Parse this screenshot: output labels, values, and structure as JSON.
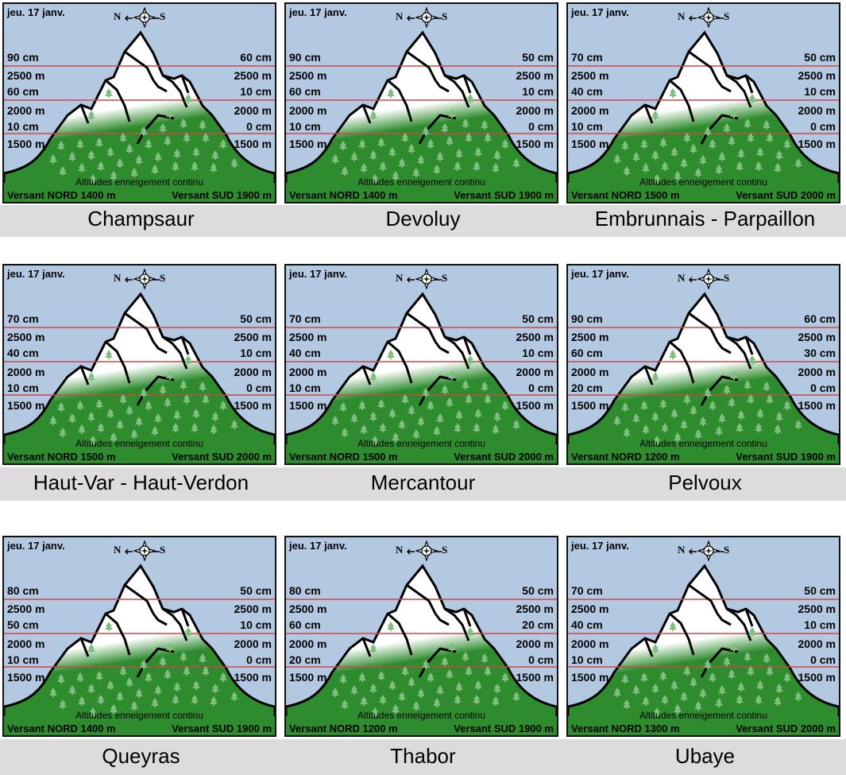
{
  "common": {
    "date": "jeu. 17 janv.",
    "north": "N",
    "south": "S",
    "alt_high": "2500 m",
    "alt_mid": "2000 m",
    "alt_low": "1500 m",
    "continu_label": "Altitudes enneigement continu"
  },
  "panels": [
    {
      "name": "Champsaur",
      "n_top": "90 cm",
      "n_mid": "60 cm",
      "n_low": "10 cm",
      "s_top": "60 cm",
      "s_mid": "10 cm",
      "s_low": "0 cm",
      "versant_nord": "Versant NORD 1400 m",
      "versant_sud": "Versant SUD 1900 m"
    },
    {
      "name": "Devoluy",
      "n_top": "90 cm",
      "n_mid": "60 cm",
      "n_low": "10 cm",
      "s_top": "50 cm",
      "s_mid": "10 cm",
      "s_low": "0 cm",
      "versant_nord": "Versant NORD 1400 m",
      "versant_sud": "Versant SUD 1900 m"
    },
    {
      "name": "Embrunnais - Parpaillon",
      "n_top": "70 cm",
      "n_mid": "40 cm",
      "n_low": "10 cm",
      "s_top": "50 cm",
      "s_mid": "10 cm",
      "s_low": "0 cm",
      "versant_nord": "Versant NORD 1500 m",
      "versant_sud": "Versant SUD 2000 m"
    },
    {
      "name": "Haut-Var - Haut-Verdon",
      "n_top": "70 cm",
      "n_mid": "40 cm",
      "n_low": "10 cm",
      "s_top": "50 cm",
      "s_mid": "10 cm",
      "s_low": "0 cm",
      "versant_nord": "Versant NORD 1500 m",
      "versant_sud": "Versant SUD 2000 m"
    },
    {
      "name": "Mercantour",
      "n_top": "70 cm",
      "n_mid": "40 cm",
      "n_low": "10 cm",
      "s_top": "50 cm",
      "s_mid": "10 cm",
      "s_low": "0 cm",
      "versant_nord": "Versant NORD 1500 m",
      "versant_sud": "Versant SUD 2000 m"
    },
    {
      "name": "Pelvoux",
      "n_top": "90 cm",
      "n_mid": "60 cm",
      "n_low": "20 cm",
      "s_top": "60 cm",
      "s_mid": "30 cm",
      "s_low": "0 cm",
      "versant_nord": "Versant NORD 1200 m",
      "versant_sud": "Versant SUD 1900 m"
    },
    {
      "name": "Queyras",
      "n_top": "80 cm",
      "n_mid": "50 cm",
      "n_low": "10 cm",
      "s_top": "50 cm",
      "s_mid": "10 cm",
      "s_low": "0 cm",
      "versant_nord": "Versant NORD 1400 m",
      "versant_sud": "Versant SUD 1900 m"
    },
    {
      "name": "Thabor",
      "n_top": "80 cm",
      "n_mid": "60 cm",
      "n_low": "20 cm",
      "s_top": "50 cm",
      "s_mid": "20 cm",
      "s_low": "0 cm",
      "versant_nord": "Versant NORD 1200 m",
      "versant_sud": "Versant SUD 1900 m"
    },
    {
      "name": "Ubaye",
      "n_top": "70 cm",
      "n_mid": "40 cm",
      "n_low": "10 cm",
      "s_top": "50 cm",
      "s_mid": "10 cm",
      "s_low": "0 cm",
      "versant_nord": "Versant NORD 1300 m",
      "versant_sud": "Versant SUD 2000 m"
    }
  ],
  "colors": {
    "sky": "#b3c9e2",
    "forest": "#2e8b2e",
    "snow": "#ffffff",
    "altitude_line": "#c84a4a",
    "band": "#dcdcdc"
  }
}
